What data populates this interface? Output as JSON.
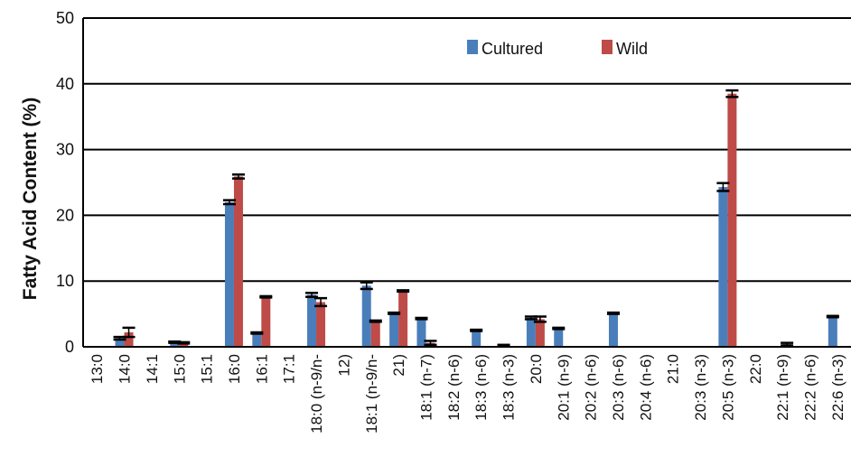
{
  "chart_data": {
    "type": "bar",
    "ylabel": "Fatty Acid Content (%)",
    "xlabel": "",
    "ylim": [
      0,
      50
    ],
    "yticks": [
      0,
      10,
      20,
      30,
      40,
      50
    ],
    "grid": true,
    "legend_position": "top-right",
    "categories": [
      "13:0",
      "14:0",
      "14:1",
      "15:0",
      "15:1",
      "16:0",
      "16:1",
      "17:1",
      "18:0 (n-9/n-",
      "12)",
      "18:1 (n-9/n-",
      "21)",
      "18:1 (n-7)",
      "18:2 (n-6)",
      "18:3 (n-6)",
      "18:3 (n-3)",
      "20:0",
      "20:1 (n-9)",
      "20:2 (n-6)",
      "20:3 (n-6)",
      "20:4 (n-6)",
      "21:0",
      "20:3 (n-3)",
      "20:5 (n-3)",
      "22:0",
      "22:1 (n-9)",
      "22:2 (n-6)",
      "22:6 (n-3)"
    ],
    "series": [
      {
        "name": "Cultured",
        "color": "#4a7ebb",
        "values": [
          0,
          1.3,
          0,
          0.7,
          0,
          22,
          2.1,
          0,
          7.9,
          0,
          9.3,
          5.1,
          4.3,
          0,
          2.5,
          0.2,
          4.4,
          2.8,
          0,
          5.1,
          0,
          0,
          0,
          24.3,
          0,
          0,
          0,
          4.6
        ],
        "errors": [
          0,
          0.2,
          0,
          0.1,
          0,
          0.3,
          0.1,
          0,
          0.3,
          0,
          0.5,
          0.1,
          0.1,
          0,
          0.1,
          0.1,
          0.2,
          0.1,
          0,
          0.1,
          0,
          0,
          0,
          0.6,
          0,
          0,
          0,
          0.1
        ]
      },
      {
        "name": "Wild",
        "color": "#be4b48",
        "values": [
          0,
          2.2,
          0,
          0.6,
          0,
          25.9,
          7.6,
          0,
          6.8,
          0,
          3.9,
          8.5,
          0.6,
          0,
          0,
          0,
          4.2,
          0,
          0,
          0,
          0,
          0,
          0,
          38.5,
          0,
          0.4,
          0,
          0
        ],
        "errors": [
          0,
          0.7,
          0,
          0.1,
          0,
          0.3,
          0.1,
          0,
          0.6,
          0,
          0.1,
          0.1,
          0.3,
          0,
          0,
          0,
          0.4,
          0,
          0,
          0,
          0,
          0,
          0,
          0.5,
          0,
          0.2,
          0,
          0
        ]
      }
    ]
  }
}
